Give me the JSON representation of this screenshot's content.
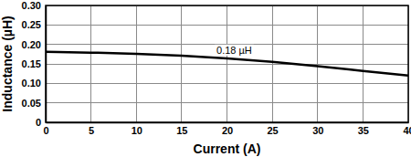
{
  "chart_data": {
    "type": "line",
    "x_label": "Current (A)",
    "y_label": "Inductance (µH)",
    "annotations": [
      "0.18 µH"
    ],
    "x": [
      0,
      5,
      10,
      15,
      20,
      25,
      30,
      35,
      40
    ],
    "values": [
      0.181,
      0.179,
      0.176,
      0.171,
      0.164,
      0.155,
      0.144,
      0.132,
      0.12
    ],
    "color": "#000000",
    "xlim": [
      0,
      40
    ],
    "xticks": [
      0,
      5,
      10,
      15,
      20,
      25,
      30,
      35,
      40
    ],
    "ylim": [
      0,
      0.3
    ],
    "yticks": [
      0,
      0.05,
      {
        "value": 0.1,
        "label": "0.10"
      },
      0.15,
      {
        "value": 0.2,
        "label": "0.20"
      },
      0.25,
      {
        "value": 0.3,
        "label": "0.30"
      }
    ],
    "grid": true
  }
}
